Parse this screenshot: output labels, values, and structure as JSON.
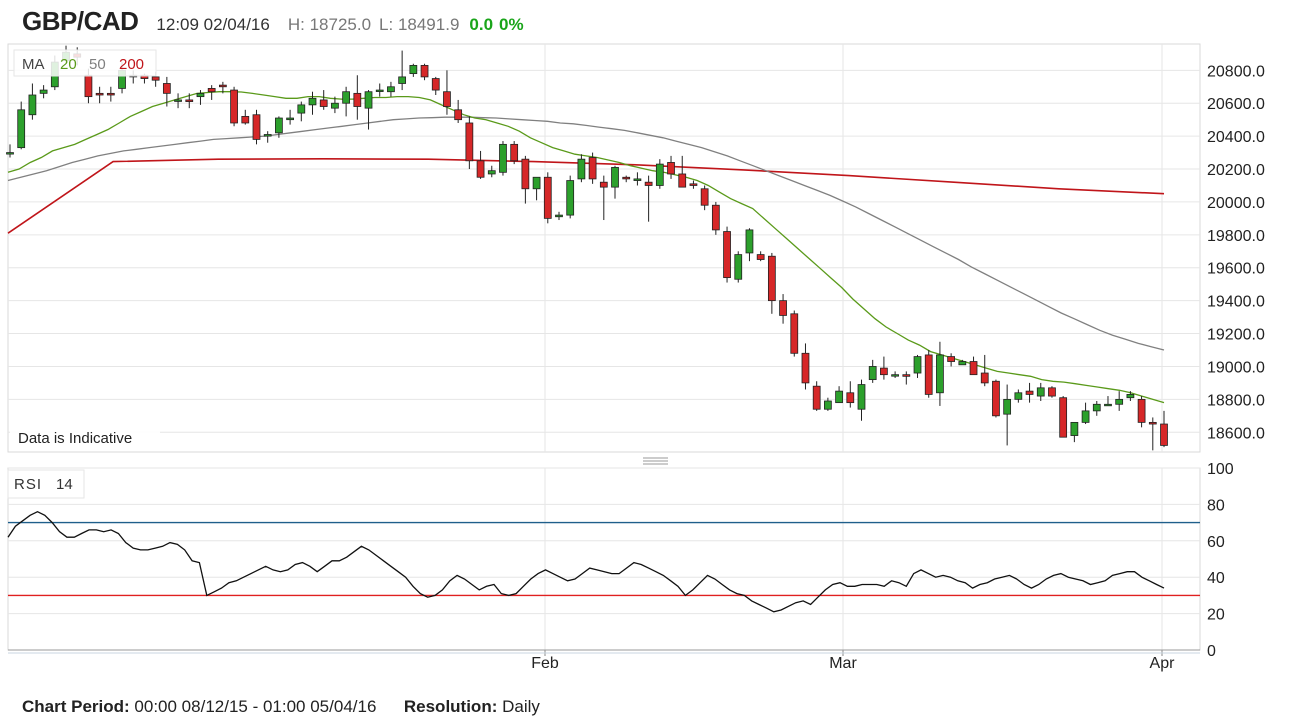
{
  "header": {
    "symbol": "GBP/CAD",
    "datetime": "12:09 02/04/16",
    "high": "H: 18725.0",
    "low": "L: 18491.9",
    "change": "0.0",
    "change_pct": "0%"
  },
  "legend": {
    "ma_label": "MA",
    "ma20": "20",
    "ma50": "50",
    "ma200": "200",
    "rsi_label": "RSI",
    "rsi_period": "14"
  },
  "indicative_note": "Data is Indicative",
  "footer": {
    "period_label": "Chart Period:",
    "period_value": "00:00 08/12/15 - 01:00 05/04/16",
    "resolution_label": "Resolution:",
    "resolution_value": "Daily"
  },
  "colors": {
    "up": "#2ca02c",
    "down": "#d62728",
    "ma20": "#5a9a1a",
    "ma50": "#808080",
    "ma200": "#c0151a",
    "rsi": "#111111",
    "rsi_upper": "#1f5f8b",
    "rsi_lower": "#e02020",
    "grid": "#e6e6e6"
  },
  "chart_data": [
    {
      "type": "candlestick",
      "ylim": [
        18480,
        20960
      ],
      "y_ticks": [
        "20800.0",
        "20600.0",
        "20400.0",
        "20200.0",
        "20000.0",
        "19800.0",
        "19600.0",
        "19400.0",
        "19200.0",
        "19000.0",
        "18800.0",
        "18600.0"
      ],
      "x_ticks": [
        "Feb",
        "Mar",
        "Apr"
      ],
      "candles": [
        [
          20300,
          20350,
          20270,
          20300
        ],
        [
          20330,
          20610,
          20320,
          20560
        ],
        [
          20530,
          20720,
          20500,
          20650
        ],
        [
          20660,
          20710,
          20630,
          20680
        ],
        [
          20700,
          20890,
          20680,
          20850
        ],
        [
          20860,
          20950,
          20840,
          20910
        ],
        [
          20900,
          20940,
          20830,
          20880
        ],
        [
          20770,
          20810,
          20600,
          20640
        ],
        [
          20660,
          20700,
          20600,
          20650
        ],
        [
          20660,
          20700,
          20610,
          20650
        ],
        [
          20690,
          20850,
          20660,
          20800
        ],
        [
          20770,
          20800,
          20720,
          20760
        ],
        [
          20770,
          20780,
          20720,
          20750
        ],
        [
          20760,
          20790,
          20700,
          20740
        ],
        [
          20720,
          20760,
          20580,
          20660
        ],
        [
          20620,
          20660,
          20570,
          20620
        ],
        [
          20620,
          20660,
          20570,
          20610
        ],
        [
          20640,
          20680,
          20590,
          20660
        ],
        [
          20690,
          20710,
          20620,
          20670
        ],
        [
          20710,
          20730,
          20660,
          20700
        ],
        [
          20680,
          20700,
          20460,
          20480
        ],
        [
          20520,
          20560,
          20470,
          20480
        ],
        [
          20530,
          20560,
          20350,
          20380
        ],
        [
          20400,
          20430,
          20360,
          20410
        ],
        [
          20420,
          20520,
          20390,
          20510
        ],
        [
          20500,
          20560,
          20470,
          20510
        ],
        [
          20540,
          20610,
          20490,
          20590
        ],
        [
          20590,
          20670,
          20530,
          20630
        ],
        [
          20620,
          20680,
          20560,
          20580
        ],
        [
          20570,
          20640,
          20540,
          20600
        ],
        [
          20600,
          20700,
          20520,
          20670
        ],
        [
          20660,
          20770,
          20500,
          20580
        ],
        [
          20570,
          20680,
          20440,
          20670
        ],
        [
          20680,
          20720,
          20640,
          20680
        ],
        [
          20670,
          20730,
          20640,
          20700
        ],
        [
          20720,
          20920,
          20680,
          20760
        ],
        [
          20780,
          20840,
          20760,
          20830
        ],
        [
          20830,
          20840,
          20740,
          20760
        ],
        [
          20750,
          20760,
          20650,
          20680
        ],
        [
          20670,
          20800,
          20530,
          20580
        ],
        [
          20560,
          20620,
          20480,
          20500
        ],
        [
          20480,
          20520,
          20200,
          20250
        ],
        [
          20250,
          20310,
          20140,
          20150
        ],
        [
          20170,
          20220,
          20150,
          20190
        ],
        [
          20180,
          20370,
          20160,
          20350
        ],
        [
          20350,
          20370,
          20230,
          20250
        ],
        [
          20260,
          20280,
          19990,
          20080
        ],
        [
          20080,
          20140,
          20010,
          20150
        ],
        [
          20150,
          20180,
          19870,
          19900
        ],
        [
          19910,
          19940,
          19890,
          19920
        ],
        [
          19920,
          20160,
          19900,
          20130
        ],
        [
          20140,
          20290,
          20120,
          20260
        ],
        [
          20270,
          20300,
          20110,
          20140
        ],
        [
          20120,
          20160,
          19890,
          20090
        ],
        [
          20090,
          20220,
          20020,
          20210
        ],
        [
          20150,
          20160,
          20120,
          20140
        ],
        [
          20130,
          20180,
          20100,
          20140
        ],
        [
          20120,
          20160,
          19880,
          20100
        ],
        [
          20100,
          20260,
          20080,
          20230
        ],
        [
          20240,
          20280,
          20140,
          20170
        ],
        [
          20170,
          20280,
          20100,
          20090
        ],
        [
          20110,
          20130,
          20080,
          20100
        ],
        [
          20080,
          20100,
          19950,
          19980
        ],
        [
          19980,
          20000,
          19800,
          19830
        ],
        [
          19820,
          19850,
          19510,
          19540
        ],
        [
          19530,
          19700,
          19510,
          19680
        ],
        [
          19690,
          19840,
          19640,
          19830
        ],
        [
          19680,
          19700,
          19640,
          19650
        ],
        [
          19670,
          19690,
          19320,
          19400
        ],
        [
          19400,
          19440,
          19260,
          19310
        ],
        [
          19320,
          19340,
          19060,
          19080
        ],
        [
          19080,
          19140,
          18860,
          18900
        ],
        [
          18880,
          18910,
          18730,
          18740
        ],
        [
          18740,
          18810,
          18730,
          18790
        ],
        [
          18780,
          18880,
          18780,
          18850
        ],
        [
          18840,
          18910,
          18750,
          18780
        ],
        [
          18740,
          18920,
          18670,
          18890
        ],
        [
          18920,
          19040,
          18900,
          19000
        ],
        [
          18990,
          19060,
          18920,
          18950
        ],
        [
          18950,
          18970,
          18930,
          18950
        ],
        [
          18950,
          18970,
          18890,
          18940
        ],
        [
          18960,
          19070,
          18930,
          19060
        ],
        [
          19070,
          19100,
          18810,
          18830
        ],
        [
          18840,
          19150,
          18760,
          19070
        ],
        [
          19060,
          19080,
          19000,
          19030
        ],
        [
          19010,
          19040,
          19010,
          19030
        ],
        [
          19030,
          19060,
          18970,
          18950
        ],
        [
          18960,
          19070,
          18880,
          18900
        ],
        [
          18910,
          18920,
          18690,
          18700
        ],
        [
          18710,
          18890,
          18520,
          18800
        ],
        [
          18800,
          18860,
          18780,
          18840
        ],
        [
          18850,
          18900,
          18780,
          18830
        ],
        [
          18820,
          18900,
          18790,
          18870
        ],
        [
          18870,
          18880,
          18810,
          18820
        ],
        [
          18810,
          18820,
          18570,
          18570
        ],
        [
          18580,
          18660,
          18540,
          18660
        ],
        [
          18660,
          18780,
          18650,
          18730
        ],
        [
          18730,
          18790,
          18700,
          18770
        ],
        [
          18770,
          18820,
          18760,
          18770
        ],
        [
          18770,
          18850,
          18730,
          18800
        ],
        [
          18810,
          18850,
          18790,
          18830
        ],
        [
          18800,
          18820,
          18630,
          18660
        ],
        [
          18660,
          18690,
          18490,
          18650
        ],
        [
          18650,
          18730,
          18510,
          18520
        ]
      ],
      "ma20": [
        20180,
        20200,
        20240,
        20270,
        20310,
        20330,
        20350,
        20380,
        20410,
        20440,
        20480,
        20520,
        20550,
        20580,
        20600,
        20620,
        20640,
        20660,
        20665,
        20670,
        20670,
        20668,
        20660,
        20650,
        20640,
        20630,
        20630,
        20640,
        20640,
        20630,
        20625,
        20625,
        20630,
        20635,
        20635,
        20640,
        20640,
        20635,
        20620,
        20590,
        20560,
        20530,
        20510,
        20500,
        20480,
        20460,
        20430,
        20390,
        20360,
        20330,
        20310,
        20290,
        20280,
        20270,
        20255,
        20240,
        20220,
        20205,
        20190,
        20180,
        20165,
        20150,
        20130,
        20100,
        20060,
        20020,
        19990,
        19960,
        19900,
        19840,
        19780,
        19720,
        19660,
        19600,
        19540,
        19480,
        19410,
        19350,
        19290,
        19240,
        19200,
        19160,
        19130,
        19090,
        19070,
        19050,
        19030,
        19010,
        18990,
        18970,
        18960,
        18950,
        18940,
        18920,
        18910,
        18905,
        18895,
        18885,
        18875,
        18865,
        18855,
        18840,
        18820,
        18800,
        18780
      ],
      "ma50": [
        20130,
        20150,
        20170,
        20190,
        20215,
        20240,
        20260,
        20280,
        20295,
        20310,
        20320,
        20330,
        20340,
        20350,
        20360,
        20370,
        20380,
        20385,
        20390,
        20395,
        20400,
        20410,
        20420,
        20430,
        20440,
        20450,
        20460,
        20470,
        20480,
        20490,
        20500,
        20505,
        20510,
        20512,
        20515,
        20515,
        20515,
        20512,
        20510,
        20505,
        20500,
        20495,
        20490,
        20480,
        20475,
        20465,
        20455,
        20445,
        20435,
        20420,
        20405,
        20390,
        20370,
        20350,
        20330,
        20305,
        20280,
        20250,
        20220,
        20190,
        20160,
        20130,
        20100,
        20070,
        20040,
        20005,
        19970,
        19930,
        19890,
        19850,
        19810,
        19770,
        19730,
        19690,
        19650,
        19605,
        19565,
        19525,
        19485,
        19445,
        19405,
        19365,
        19325,
        19290,
        19255,
        19220,
        19190,
        19165,
        19140,
        19120,
        19100
      ],
      "ma200": [
        19810,
        20245,
        20260,
        20262,
        20260,
        20245,
        20225,
        20195,
        20160,
        20120,
        20080,
        20050
      ],
      "rsi": [
        62,
        68,
        71,
        74,
        76,
        74,
        70,
        65,
        62,
        62,
        64,
        66,
        66,
        65,
        66,
        64,
        59,
        56,
        55,
        55,
        56,
        57,
        59,
        58,
        55,
        49,
        48,
        30,
        32,
        34,
        37,
        38,
        40,
        42,
        44,
        46,
        44,
        43,
        44,
        47,
        48,
        46,
        43,
        46,
        49,
        49,
        51,
        54,
        57,
        55,
        52,
        49,
        46,
        43,
        40,
        35,
        31,
        29,
        30,
        33,
        38,
        41,
        39,
        36,
        33,
        35,
        36,
        31,
        30,
        31,
        35,
        39,
        42,
        44,
        42,
        40,
        38,
        39,
        42,
        45,
        44,
        43,
        42,
        42,
        45,
        48,
        47,
        45,
        43,
        41,
        38,
        35,
        30,
        33,
        37,
        41,
        39,
        36,
        33,
        31,
        30,
        27,
        25,
        23,
        21,
        22,
        24,
        26,
        27,
        25,
        29,
        33,
        36,
        37,
        35,
        35,
        36,
        36,
        36,
        35,
        38,
        37,
        35,
        42,
        44,
        42,
        40,
        41,
        40,
        38,
        37,
        34,
        36,
        37,
        39,
        40,
        41,
        39,
        36,
        34,
        36,
        39,
        41,
        42,
        40,
        39,
        38,
        36,
        37,
        38,
        41,
        42,
        43,
        43,
        40,
        38,
        36,
        34
      ]
    }
  ]
}
